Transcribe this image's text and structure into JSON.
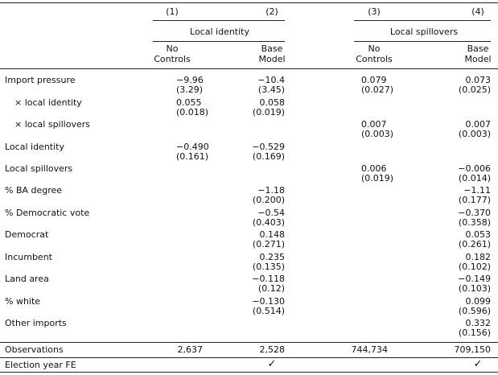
{
  "columns": [
    "(1)",
    "(2)",
    "(3)",
    "(4)"
  ],
  "groups": [
    "Local identity",
    "Local spillovers"
  ],
  "subheaders": [
    [
      "No",
      "Controls"
    ],
    [
      "Base",
      "Model"
    ],
    [
      "No",
      "Controls"
    ],
    [
      "Base",
      "Model"
    ]
  ],
  "rows": [
    {
      "label": "Import pressure",
      "vals": [
        [
          "−9.96",
          "(3.29)"
        ],
        [
          "−10.4",
          "(3.45)"
        ],
        [
          "0.079",
          "(0.027)"
        ],
        [
          "0.073",
          "(0.025)"
        ]
      ]
    },
    {
      "label": "× local identity",
      "vals": [
        [
          "0.055",
          "(0.018)"
        ],
        [
          "0.058",
          "(0.019)"
        ],
        null,
        null
      ]
    },
    {
      "label": "× local spillovers",
      "vals": [
        null,
        null,
        [
          "0.007",
          "(0.003)"
        ],
        [
          "0.007",
          "(0.003)"
        ]
      ]
    },
    {
      "label": "Local identity",
      "vals": [
        [
          "−0.490",
          "(0.161)"
        ],
        [
          "−0.529",
          "(0.169)"
        ],
        null,
        null
      ]
    },
    {
      "label": "Local spillovers",
      "vals": [
        null,
        null,
        [
          "0.006",
          "(0.019)"
        ],
        [
          "−0.006",
          "(0.014)"
        ]
      ]
    },
    {
      "label": "% BA degree",
      "vals": [
        null,
        [
          "−1.18",
          "(0.200)"
        ],
        null,
        [
          "−1.11",
          "(0.177)"
        ]
      ]
    },
    {
      "label": "% Democratic vote",
      "vals": [
        null,
        [
          "−0.54",
          "(0.403)"
        ],
        null,
        [
          "−0.370",
          "(0.358)"
        ]
      ]
    },
    {
      "label": "Democrat",
      "vals": [
        null,
        [
          "0.148",
          "(0.271)"
        ],
        null,
        [
          "0.053",
          "(0.261)"
        ]
      ]
    },
    {
      "label": "Incumbent",
      "vals": [
        null,
        [
          "0.235",
          "(0.135)"
        ],
        null,
        [
          "0.182",
          "(0.102)"
        ]
      ]
    },
    {
      "label": "Land area",
      "vals": [
        null,
        [
          "−0.118",
          "(0.12)"
        ],
        null,
        [
          "−0.149",
          "(0.103)"
        ]
      ]
    },
    {
      "label": "% white",
      "vals": [
        null,
        [
          "−0.130",
          "(0.514)"
        ],
        null,
        [
          "0.099",
          "(0.596)"
        ]
      ]
    },
    {
      "label": "Other imports",
      "vals": [
        null,
        null,
        null,
        [
          "0.332",
          "(0.156)"
        ]
      ]
    }
  ],
  "observations": {
    "label": "Observations",
    "vals": [
      "2,637",
      "2,528",
      "744,734",
      "709,150"
    ]
  },
  "fe": {
    "label": "Election year FE",
    "vals": [
      "",
      "✓",
      "",
      "✓"
    ]
  }
}
